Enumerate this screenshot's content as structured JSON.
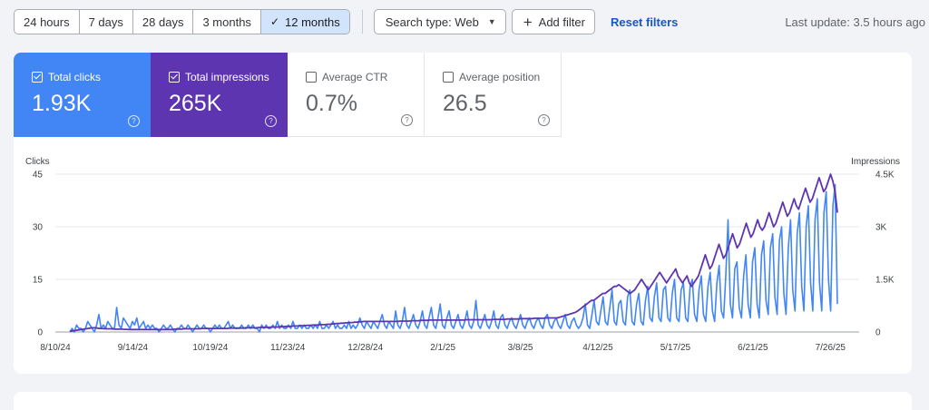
{
  "toolbar": {
    "ranges": [
      {
        "label": "24 hours",
        "active": false
      },
      {
        "label": "7 days",
        "active": false
      },
      {
        "label": "28 days",
        "active": false
      },
      {
        "label": "3 months",
        "active": false
      },
      {
        "label": "12 months",
        "active": true
      }
    ],
    "search_type": "Search type: Web",
    "add_filter": "Add filter",
    "reset_filters": "Reset filters",
    "last_update": "Last update: 3.5 hours ago"
  },
  "metrics": [
    {
      "label": "Total clicks",
      "value": "1.93K",
      "checked": true,
      "color": "#4285f4"
    },
    {
      "label": "Total impressions",
      "value": "265K",
      "checked": true,
      "color": "#5e35b1"
    },
    {
      "label": "Average CTR",
      "value": "0.7%",
      "checked": false
    },
    {
      "label": "Average position",
      "value": "26.5",
      "checked": false
    }
  ],
  "chart_data": {
    "type": "line",
    "left_axis_title": "Clicks",
    "right_axis_title": "Impressions",
    "left_ticks": [
      "0",
      "15",
      "30",
      "45"
    ],
    "right_ticks": [
      "0",
      "1.5K",
      "3K",
      "4.5K"
    ],
    "ylim_left": [
      0,
      45
    ],
    "ylim_right": [
      0,
      4500
    ],
    "x_labels": [
      "8/10/24",
      "9/14/24",
      "10/19/24",
      "11/23/24",
      "12/28/24",
      "2/1/25",
      "3/8/25",
      "4/12/25",
      "5/17/25",
      "6/21/25",
      "7/26/25"
    ],
    "x_range": [
      "8/10/24",
      "8/8/25"
    ],
    "grid": true,
    "series": [
      {
        "name": "Clicks",
        "color": "#4285f4",
        "axis": "left",
        "values": [
          0,
          1,
          0,
          2,
          1,
          1,
          0,
          1,
          3,
          2,
          1,
          0,
          2,
          5,
          1,
          2,
          1,
          3,
          2,
          1,
          1,
          7,
          2,
          1,
          4,
          3,
          2,
          1,
          3,
          2,
          4,
          1,
          2,
          3,
          1,
          2,
          1,
          2,
          1,
          1,
          0,
          1,
          2,
          1,
          1,
          2,
          1,
          0,
          1,
          1,
          2,
          1,
          1,
          2,
          1,
          0,
          1,
          2,
          1,
          1,
          2,
          1,
          1,
          0,
          1,
          2,
          1,
          2,
          1,
          1,
          2,
          3,
          1,
          2,
          1,
          1,
          1,
          2,
          1,
          1,
          2,
          1,
          2,
          1,
          1,
          0,
          2,
          1,
          2,
          1,
          1,
          2,
          1,
          3,
          1,
          2,
          1,
          1,
          2,
          1,
          3,
          1,
          1,
          2,
          1,
          2,
          1,
          1,
          2,
          1,
          2,
          1,
          3,
          1,
          1,
          2,
          1,
          2,
          3,
          1,
          2,
          1,
          1,
          2,
          1,
          3,
          1,
          2,
          1,
          2,
          4,
          2,
          1,
          3,
          2,
          1,
          3,
          2,
          1,
          3,
          5,
          2,
          1,
          3,
          2,
          1,
          6,
          2,
          1,
          3,
          7,
          2,
          1,
          3,
          5,
          2,
          1,
          3,
          6,
          2,
          1,
          4,
          7,
          2,
          1,
          4,
          8,
          2,
          1,
          4,
          6,
          2,
          1,
          3,
          5,
          2,
          1,
          3,
          6,
          2,
          1,
          3,
          9,
          2,
          1,
          3,
          5,
          2,
          1,
          3,
          6,
          2,
          1,
          4,
          5,
          2,
          1,
          3,
          4,
          2,
          1,
          3,
          5,
          2,
          1,
          3,
          4,
          2,
          1,
          3,
          4,
          2,
          1,
          4,
          5,
          2,
          1,
          3,
          4,
          2,
          1,
          3,
          5,
          2,
          1,
          3,
          4,
          2,
          1,
          2,
          4,
          8,
          2,
          1,
          5,
          9,
          3,
          2,
          6,
          10,
          3,
          2,
          7,
          12,
          3,
          2,
          8,
          9,
          3,
          2,
          10,
          12,
          3,
          2,
          8,
          11,
          3,
          2,
          9,
          13,
          4,
          3,
          10,
          14,
          4,
          3,
          12,
          13,
          4,
          3,
          11,
          15,
          4,
          3,
          12,
          14,
          4,
          3,
          13,
          15,
          5,
          3,
          12,
          16,
          5,
          3,
          13,
          17,
          6,
          3,
          14,
          19,
          6,
          4,
          16,
          32,
          8,
          4,
          18,
          20,
          7,
          4,
          16,
          22,
          8,
          4,
          20,
          24,
          8,
          4,
          22,
          26,
          9,
          5,
          24,
          28,
          10,
          5,
          26,
          30,
          11,
          5,
          24,
          32,
          12,
          6,
          28,
          34,
          13,
          6,
          30,
          36,
          14,
          6,
          32,
          38,
          14,
          6,
          34,
          40,
          15,
          6,
          36,
          42,
          8
        ]
      },
      {
        "name": "Impressions",
        "color": "#5e35b1",
        "axis": "right",
        "values": [
          20,
          30,
          40,
          50,
          60,
          70,
          80,
          90,
          100,
          110,
          120,
          120,
          110,
          100,
          100,
          95,
          90,
          90,
          90,
          85,
          80,
          80,
          80,
          80,
          75,
          75,
          70,
          70,
          70,
          70,
          70,
          70,
          70,
          70,
          70,
          70,
          70,
          70,
          70,
          70,
          70,
          70,
          70,
          70,
          70,
          70,
          80,
          80,
          80,
          80,
          90,
          90,
          90,
          90,
          90,
          90,
          90,
          90,
          100,
          100,
          100,
          100,
          100,
          100,
          100,
          100,
          100,
          100,
          100,
          100,
          110,
          110,
          110,
          110,
          110,
          110,
          110,
          120,
          120,
          120,
          120,
          120,
          120,
          130,
          130,
          130,
          130,
          130,
          140,
          140,
          140,
          140,
          150,
          150,
          150,
          160,
          160,
          160,
          170,
          170,
          170,
          180,
          180,
          180,
          190,
          190,
          190,
          200,
          200,
          200,
          210,
          210,
          210,
          220,
          220,
          230,
          230,
          240,
          240,
          250,
          250,
          260,
          260,
          270,
          270,
          280,
          280,
          290,
          290,
          300,
          300,
          300,
          300,
          300,
          300,
          300,
          300,
          300,
          300,
          300,
          300,
          300,
          300,
          300,
          300,
          310,
          310,
          310,
          310,
          310,
          320,
          320,
          320,
          320,
          330,
          330,
          330,
          330,
          340,
          340,
          340,
          340,
          340,
          340,
          340,
          340,
          340,
          340,
          340,
          340,
          340,
          340,
          340,
          340,
          350,
          350,
          350,
          350,
          350,
          350,
          350,
          350,
          350,
          350,
          350,
          350,
          360,
          360,
          360,
          360,
          360,
          360,
          370,
          370,
          370,
          370,
          370,
          370,
          380,
          380,
          380,
          380,
          380,
          380,
          390,
          390,
          390,
          390,
          390,
          400,
          400,
          400,
          400,
          400,
          400,
          420,
          440,
          460,
          480,
          500,
          520,
          540,
          560,
          600,
          650,
          700,
          750,
          800,
          850,
          900,
          900,
          950,
          1000,
          1050,
          1100,
          1100,
          1150,
          1200,
          1250,
          1300,
          1300,
          1350,
          1300,
          1250,
          1200,
          1150,
          1100,
          1150,
          1200,
          1300,
          1400,
          1500,
          1400,
          1300,
          1200,
          1300,
          1400,
          1500,
          1600,
          1700,
          1600,
          1500,
          1400,
          1500,
          1600,
          1700,
          1800,
          1600,
          1500,
          1400,
          1500,
          1600,
          1400,
          1300,
          1400,
          1500,
          1600,
          1800,
          2000,
          2200,
          2000,
          1800,
          1900,
          2100,
          2300,
          2500,
          2300,
          2100,
          2200,
          2400,
          2600,
          2800,
          2600,
          2400,
          2500,
          2700,
          2900,
          3100,
          2900,
          2700,
          2800,
          3000,
          3200,
          3000,
          2900,
          3000,
          3200,
          3400,
          3200,
          3000,
          3100,
          3300,
          3500,
          3700,
          3500,
          3300,
          3400,
          3600,
          3800,
          3600,
          3500,
          3700,
          3900,
          4100,
          3900,
          3700,
          3800,
          4000,
          4200,
          4400,
          4200,
          4000,
          4100,
          4300,
          4500,
          4300,
          4000,
          3400
        ]
      }
    ]
  }
}
